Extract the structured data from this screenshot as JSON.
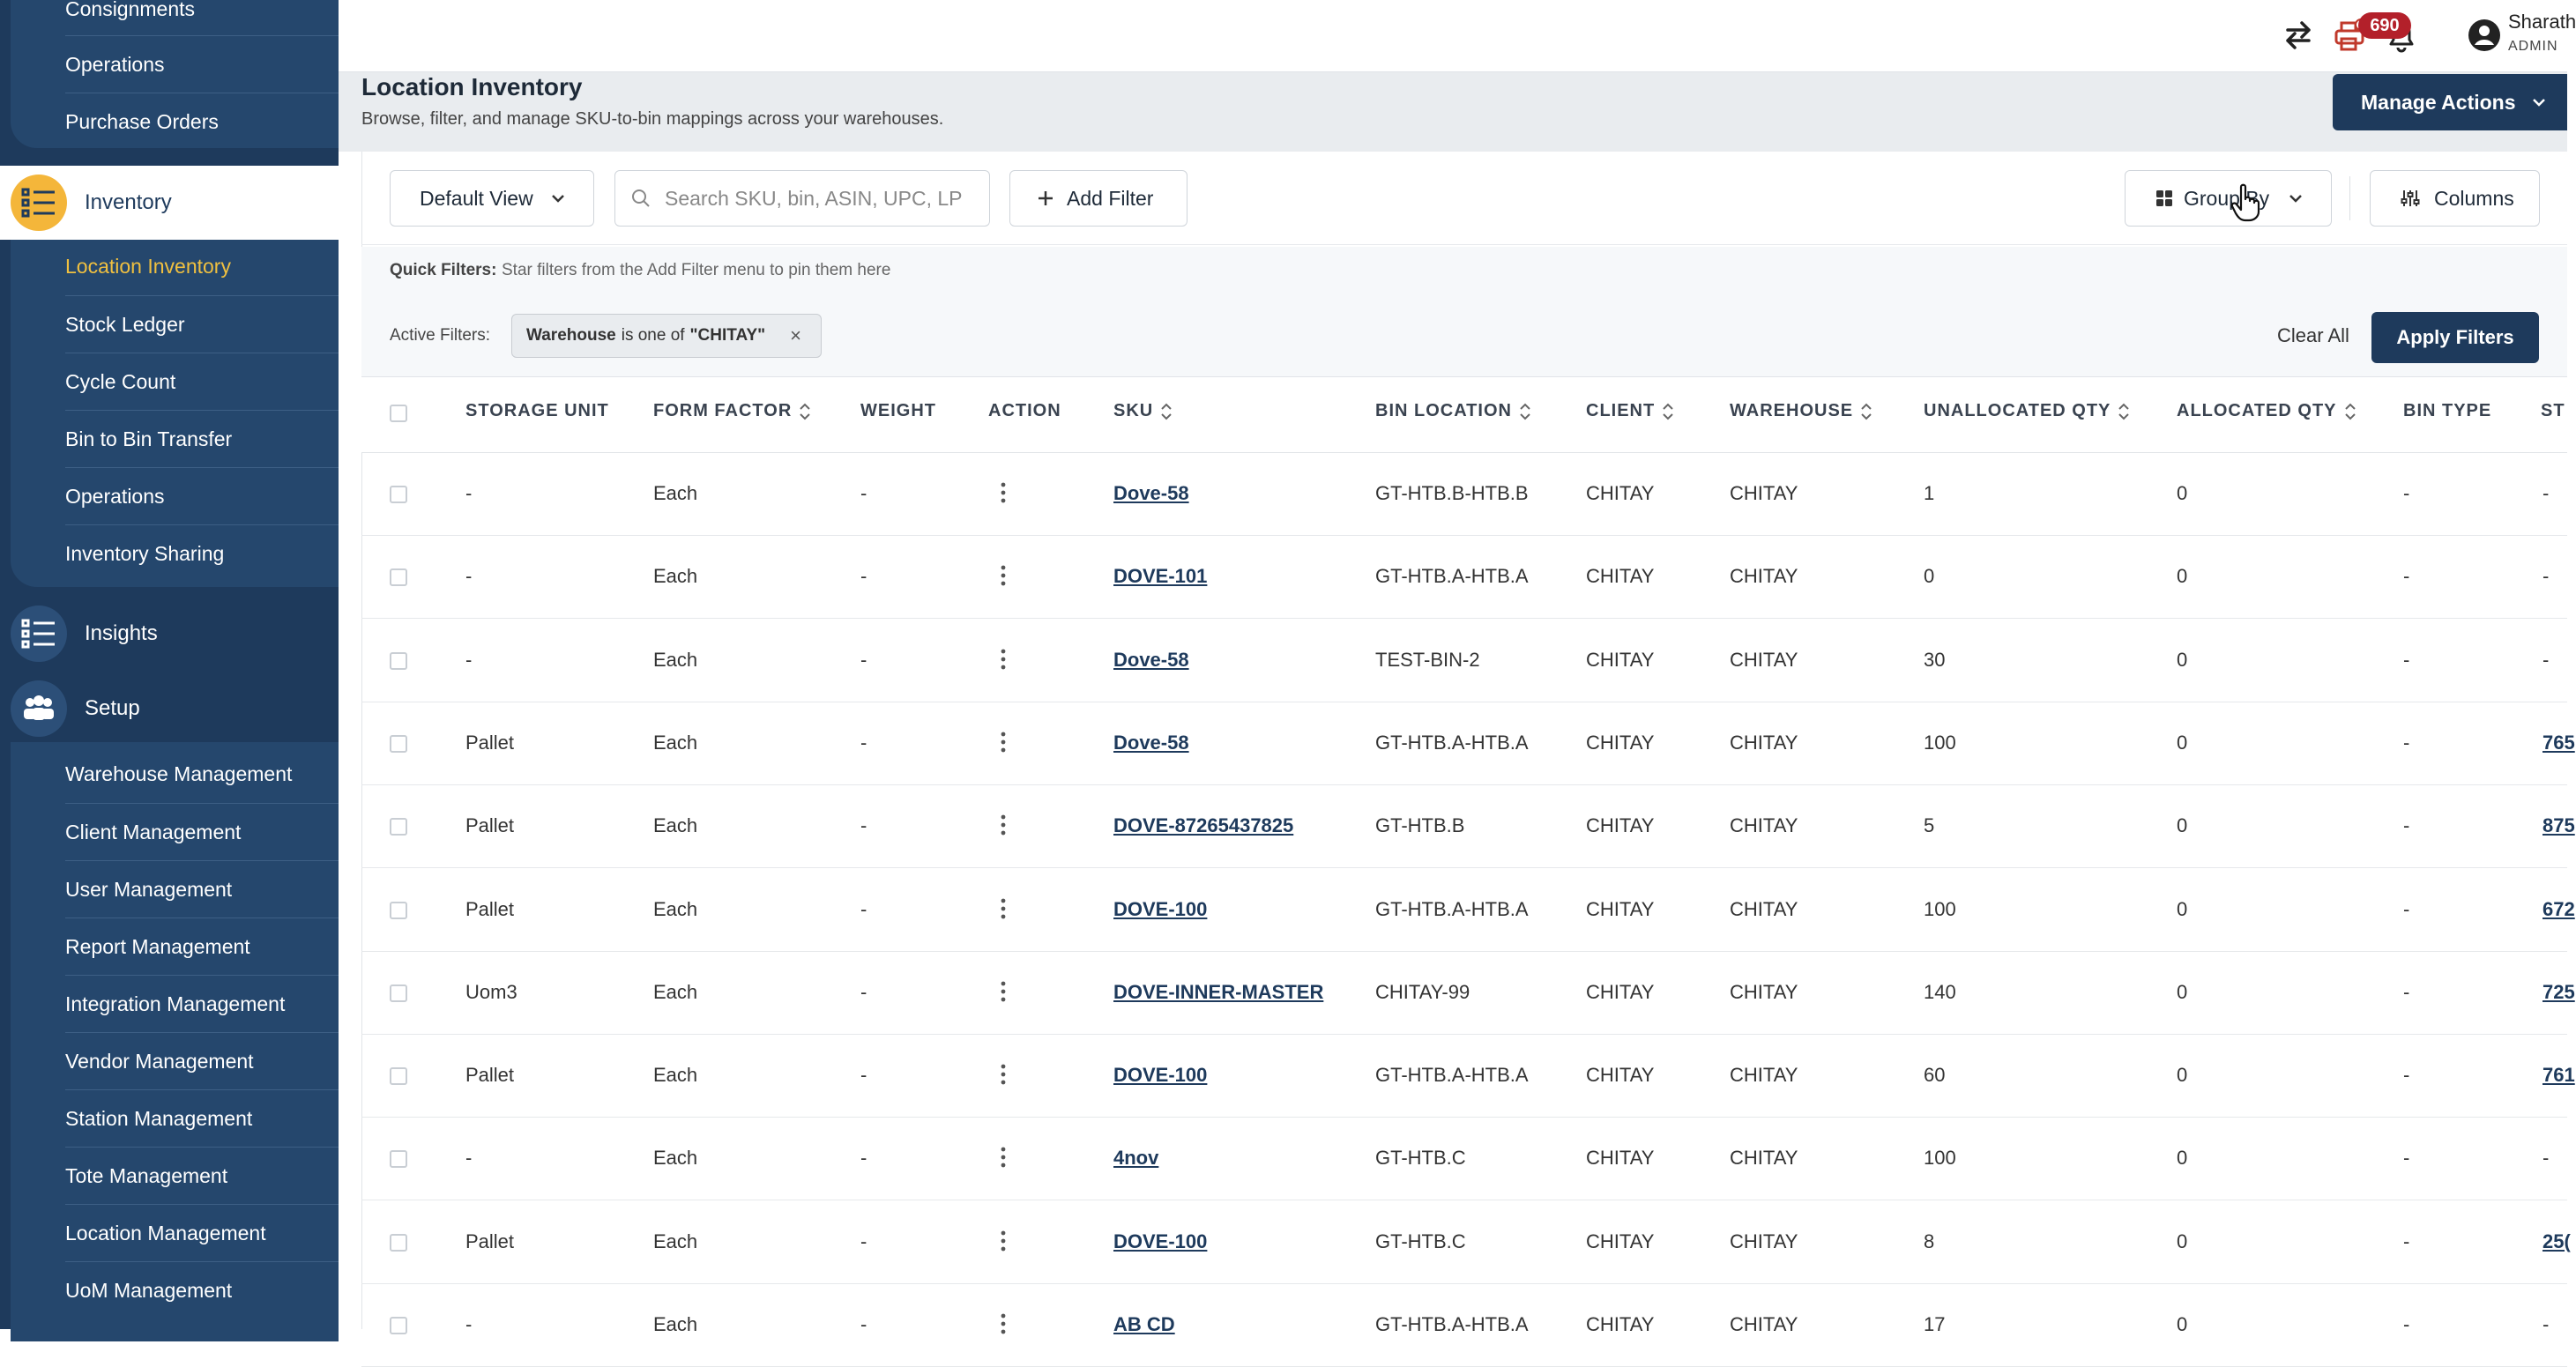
{
  "sidebar": {
    "top_items": [
      "Consignments",
      "Operations",
      "Purchase Orders"
    ],
    "inventory": {
      "label": "Inventory",
      "items": [
        "Location Inventory",
        "Stock Ledger",
        "Cycle Count",
        "Bin to Bin Transfer",
        "Operations",
        "Inventory Sharing"
      ],
      "active_item": "Location Inventory"
    },
    "insights": {
      "label": "Insights"
    },
    "setup": {
      "label": "Setup",
      "items": [
        "Warehouse Management",
        "Client Management",
        "User Management",
        "Report Management",
        "Integration Management",
        "Vendor Management",
        "Station Management",
        "Tote Management",
        "Location Management",
        "UoM Management"
      ]
    }
  },
  "topbar": {
    "notification_count": "690",
    "user_name": "Sharath",
    "user_role": "ADMIN",
    "icons": [
      "swap-icon",
      "printer-icon",
      "bell-icon",
      "user-avatar-icon"
    ]
  },
  "page": {
    "title": "Location Inventory",
    "subtitle": "Browse, filter, and manage SKU-to-bin mappings across your warehouses.",
    "manage_actions": "Manage Actions"
  },
  "toolbar": {
    "view": "Default View",
    "search_placeholder": "Search SKU, bin, ASIN, UPC, LP",
    "add_filter": "Add Filter",
    "group_by": "Group By",
    "columns": "Columns"
  },
  "filters": {
    "quick_label": "Quick Filters:",
    "quick_text": "Star filters from the Add Filter menu to pin them here",
    "active_label": "Active Filters:",
    "chip_field": "Warehouse",
    "chip_op": "is one of",
    "chip_value": "\"CHITAY\"",
    "clear_all": "Clear All",
    "apply": "Apply Filters"
  },
  "table": {
    "columns": [
      "STORAGE UNIT",
      "FORM FACTOR",
      "WEIGHT",
      "ACTION",
      "SKU",
      "BIN LOCATION",
      "CLIENT",
      "WAREHOUSE",
      "UNALLOCATED QTY",
      "ALLOCATED QTY",
      "BIN TYPE",
      "ST"
    ],
    "rows": [
      {
        "storage_unit": "-",
        "form_factor": "Each",
        "weight": "-",
        "sku": "Dove-58",
        "bin": "GT-HTB.B-HTB.B",
        "client": "CHITAY",
        "warehouse": "CHITAY",
        "unalloc": "1",
        "alloc": "0",
        "bin_type": "-",
        "st": "-"
      },
      {
        "storage_unit": "-",
        "form_factor": "Each",
        "weight": "-",
        "sku": "DOVE-101",
        "bin": "GT-HTB.A-HTB.A",
        "client": "CHITAY",
        "warehouse": "CHITAY",
        "unalloc": "0",
        "alloc": "0",
        "bin_type": "-",
        "st": "-"
      },
      {
        "storage_unit": "-",
        "form_factor": "Each",
        "weight": "-",
        "sku": "Dove-58",
        "bin": "TEST-BIN-2",
        "client": "CHITAY",
        "warehouse": "CHITAY",
        "unalloc": "30",
        "alloc": "0",
        "bin_type": "-",
        "st": "-"
      },
      {
        "storage_unit": "Pallet",
        "form_factor": "Each",
        "weight": "-",
        "sku": "Dove-58",
        "bin": "GT-HTB.A-HTB.A",
        "client": "CHITAY",
        "warehouse": "CHITAY",
        "unalloc": "100",
        "alloc": "0",
        "bin_type": "-",
        "st": "765"
      },
      {
        "storage_unit": "Pallet",
        "form_factor": "Each",
        "weight": "-",
        "sku": "DOVE-87265437825",
        "bin": "GT-HTB.B",
        "client": "CHITAY",
        "warehouse": "CHITAY",
        "unalloc": "5",
        "alloc": "0",
        "bin_type": "-",
        "st": "875"
      },
      {
        "storage_unit": "Pallet",
        "form_factor": "Each",
        "weight": "-",
        "sku": "DOVE-100",
        "bin": "GT-HTB.A-HTB.A",
        "client": "CHITAY",
        "warehouse": "CHITAY",
        "unalloc": "100",
        "alloc": "0",
        "bin_type": "-",
        "st": "672"
      },
      {
        "storage_unit": "Uom3",
        "form_factor": "Each",
        "weight": "-",
        "sku": "DOVE-INNER-MASTER",
        "bin": "CHITAY-99",
        "client": "CHITAY",
        "warehouse": "CHITAY",
        "unalloc": "140",
        "alloc": "0",
        "bin_type": "-",
        "st": "725"
      },
      {
        "storage_unit": "Pallet",
        "form_factor": "Each",
        "weight": "-",
        "sku": "DOVE-100",
        "bin": "GT-HTB.A-HTB.A",
        "client": "CHITAY",
        "warehouse": "CHITAY",
        "unalloc": "60",
        "alloc": "0",
        "bin_type": "-",
        "st": "761"
      },
      {
        "storage_unit": "-",
        "form_factor": "Each",
        "weight": "-",
        "sku": "4nov",
        "bin": "GT-HTB.C",
        "client": "CHITAY",
        "warehouse": "CHITAY",
        "unalloc": "100",
        "alloc": "0",
        "bin_type": "-",
        "st": "-"
      },
      {
        "storage_unit": "Pallet",
        "form_factor": "Each",
        "weight": "-",
        "sku": "DOVE-100",
        "bin": "GT-HTB.C",
        "client": "CHITAY",
        "warehouse": "CHITAY",
        "unalloc": "8",
        "alloc": "0",
        "bin_type": "-",
        "st": "25("
      },
      {
        "storage_unit": "-",
        "form_factor": "Each",
        "weight": "-",
        "sku": "AB CD",
        "bin": "GT-HTB.A-HTB.A",
        "client": "CHITAY",
        "warehouse": "CHITAY",
        "unalloc": "17",
        "alloc": "0",
        "bin_type": "-",
        "st": "-"
      }
    ]
  },
  "colors": {
    "sidebar_bg": "#1e3a5c",
    "sidebar_panel": "#25476d",
    "accent": "#f4b63a",
    "active_text": "#f0c040",
    "primary_button": "#1e3a5c",
    "badge": "#b3202a"
  }
}
